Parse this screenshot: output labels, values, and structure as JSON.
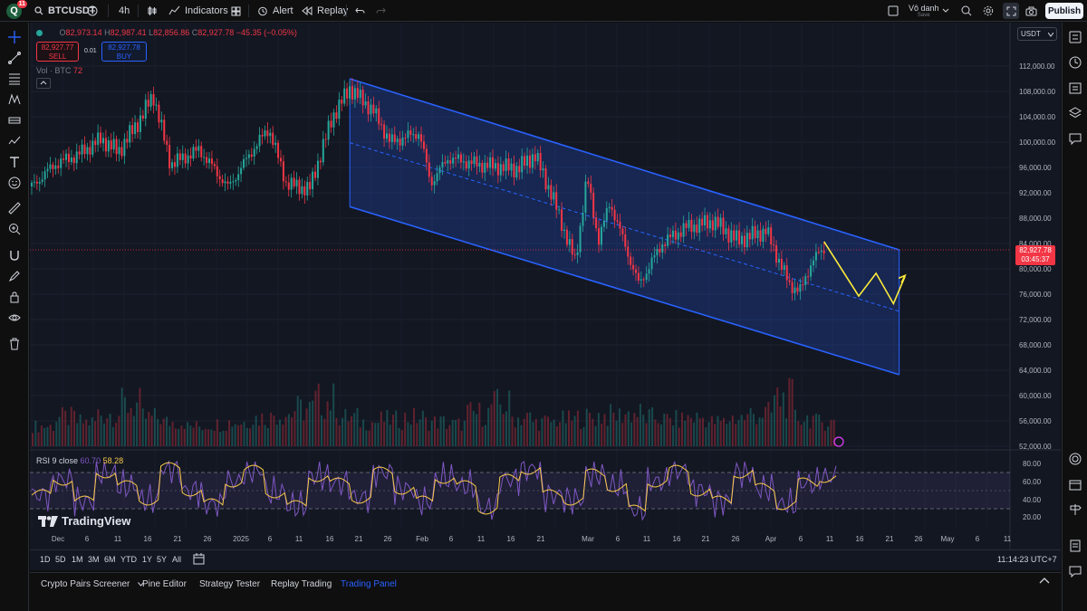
{
  "topbar": {
    "avatar_letter": "Q",
    "notif_count": "11",
    "symbol": "BTCUSDT",
    "interval": "4h",
    "indicators_label": "Indicators",
    "alert_label": "Alert",
    "replay_label": "Replay",
    "layout_name": "Vô danh",
    "save_label": "Save",
    "publish_label": "Publish"
  },
  "legend": {
    "o_label": "O",
    "o_val": "82,973.14",
    "h_label": "H",
    "h_val": "82,987.41",
    "l_label": "L",
    "l_val": "82,856.86",
    "c_label": "C",
    "c_val": "82,927.78",
    "change": "−45.35 (−0.05%)",
    "sell_price": "82,927.77",
    "sell_label": "SELL",
    "spread": "0.01",
    "buy_price": "82,927.78",
    "buy_label": "BUY",
    "vol_label": "Vol · BTC",
    "vol_val": "72",
    "rsi_label": "RSI 9 close",
    "rsi_val1": "60.70",
    "rsi_val2": "58.28"
  },
  "currency_select": "USDT",
  "current_price": {
    "price": "82,927.78",
    "countdown": "03:45:37"
  },
  "brand": "TradingView",
  "chart_data": {
    "type": "candlestick",
    "symbol": "BTCUSDT",
    "interval": "4h",
    "price_axis": [
      "112,000.00",
      "108,000.00",
      "104,000.00",
      "100,000.00",
      "96,000.00",
      "92,000.00",
      "88,000.00",
      "84,000.00",
      "80,000.00",
      "76,000.00",
      "72,000.00",
      "68,000.00",
      "64,000.00",
      "60,000.00",
      "56,000.00",
      "52,000.00"
    ],
    "rsi_axis": [
      "80.00",
      "60.00",
      "40.00",
      "20.00"
    ],
    "time_axis": [
      "Dec",
      "6",
      "11",
      "16",
      "21",
      "26",
      "2025",
      "6",
      "11",
      "16",
      "21",
      "26",
      "Feb",
      "6",
      "11",
      "16",
      "21",
      "Mar",
      "6",
      "11",
      "16",
      "21",
      "26",
      "Apr",
      "6",
      "11",
      "16",
      "21",
      "26",
      "May",
      "6",
      "11"
    ],
    "ylim": [
      52000,
      112000
    ],
    "close_path": [
      {
        "x": "2024-11-26",
        "y": 93000
      },
      {
        "x": "2024-11-30",
        "y": 96500
      },
      {
        "x": "2024-12-04",
        "y": 98000
      },
      {
        "x": "2024-12-08",
        "y": 100500
      },
      {
        "x": "2024-12-11",
        "y": 98500
      },
      {
        "x": "2024-12-15",
        "y": 104000
      },
      {
        "x": "2024-12-17",
        "y": 107500
      },
      {
        "x": "2024-12-20",
        "y": 96500
      },
      {
        "x": "2024-12-25",
        "y": 98800
      },
      {
        "x": "2024-12-30",
        "y": 92800
      },
      {
        "x": "2025-01-03",
        "y": 98500
      },
      {
        "x": "2025-01-06",
        "y": 102200
      },
      {
        "x": "2025-01-09",
        "y": 93500
      },
      {
        "x": "2025-01-13",
        "y": 92500
      },
      {
        "x": "2025-01-17",
        "y": 104000
      },
      {
        "x": "2025-01-20",
        "y": 108500
      },
      {
        "x": "2025-01-24",
        "y": 105000
      },
      {
        "x": "2025-01-27",
        "y": 100000
      },
      {
        "x": "2025-02-01",
        "y": 101500
      },
      {
        "x": "2025-02-03",
        "y": 93500
      },
      {
        "x": "2025-02-06",
        "y": 97500
      },
      {
        "x": "2025-02-11",
        "y": 96500
      },
      {
        "x": "2025-02-18",
        "y": 95800
      },
      {
        "x": "2025-02-21",
        "y": 98000
      },
      {
        "x": "2025-02-24",
        "y": 91500
      },
      {
        "x": "2025-02-28",
        "y": 81000
      },
      {
        "x": "2025-03-02",
        "y": 94500
      },
      {
        "x": "2025-03-04",
        "y": 84500
      },
      {
        "x": "2025-03-06",
        "y": 90500
      },
      {
        "x": "2025-03-10",
        "y": 80000
      },
      {
        "x": "2025-03-11",
        "y": 77500
      },
      {
        "x": "2025-03-15",
        "y": 84000
      },
      {
        "x": "2025-03-19",
        "y": 86500
      },
      {
        "x": "2025-03-24",
        "y": 87500
      },
      {
        "x": "2025-03-28",
        "y": 84500
      },
      {
        "x": "2025-04-02",
        "y": 86000
      },
      {
        "x": "2025-04-06",
        "y": 77500
      },
      {
        "x": "2025-04-08",
        "y": 76500
      },
      {
        "x": "2025-04-10",
        "y": 81500
      },
      {
        "x": "2025-04-12",
        "y": 83000
      }
    ],
    "channel": {
      "upper": [
        {
          "x": "2025-01-20",
          "y": 110000
        },
        {
          "x": "2025-04-25",
          "y": 83000
        }
      ],
      "middle": [
        {
          "x": "2025-01-20",
          "y": 99900
        },
        {
          "x": "2025-04-25",
          "y": 73300
        }
      ],
      "lower": [
        {
          "x": "2025-01-20",
          "y": 89800
        },
        {
          "x": "2025-04-25",
          "y": 63300
        }
      ]
    },
    "projection": [
      {
        "x": "2025-04-12",
        "y": 84300
      },
      {
        "x": "2025-04-18",
        "y": 75700
      },
      {
        "x": "2025-04-21",
        "y": 79300
      },
      {
        "x": "2025-04-24",
        "y": 74500
      },
      {
        "x": "2025-04-26",
        "y": 78800
      }
    ],
    "volume_profile": [
      0.3,
      0.5,
      0.4,
      0.6,
      0.8,
      0.5,
      0.4,
      0.3,
      0.35,
      0.4,
      0.5,
      0.6,
      0.7,
      0.9,
      0.5,
      0.4,
      0.45,
      0.5,
      0.4,
      0.35,
      0.6,
      0.8,
      0.5,
      0.4,
      0.45,
      0.5,
      0.55,
      0.6,
      0.5,
      0.45,
      0.5,
      0.4,
      0.5,
      0.6,
      0.95,
      0.5,
      0.4
    ],
    "rsi_profile": [
      45,
      62,
      38,
      70,
      55,
      40,
      75,
      50,
      35,
      60,
      72,
      48,
      33,
      66,
      58,
      42,
      70,
      52,
      38,
      64,
      55,
      30,
      62,
      74,
      45,
      40,
      68,
      55,
      28,
      60,
      72,
      50,
      38,
      70,
      52,
      35,
      58,
      65
    ]
  },
  "range_buttons": [
    "1D",
    "5D",
    "1M",
    "3M",
    "6M",
    "YTD",
    "1Y",
    "5Y",
    "All"
  ],
  "clock": "11:14:23 UTC+7",
  "bottom_tabs": [
    "Crypto Pairs Screener",
    "Pine Editor",
    "Strategy Tester",
    "Replay Trading",
    "Trading Panel"
  ]
}
